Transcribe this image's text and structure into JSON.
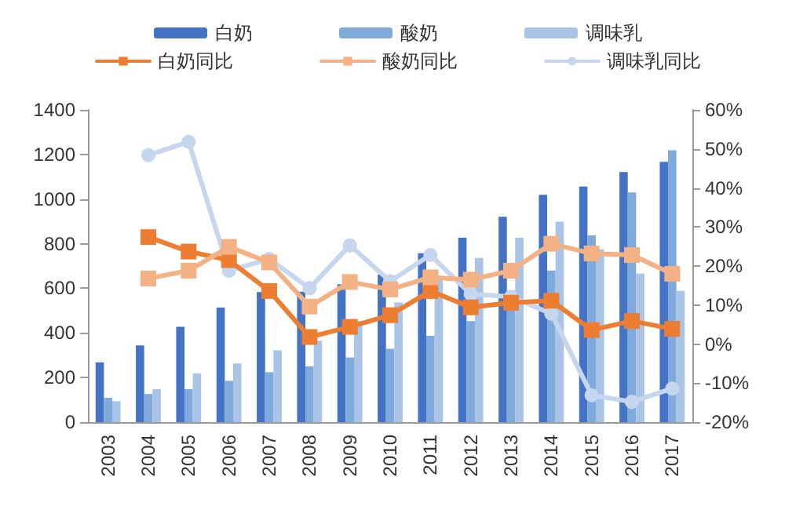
{
  "chart_data": {
    "type": "bar",
    "categories": [
      "2003",
      "2004",
      "2005",
      "2006",
      "2007",
      "2008",
      "2009",
      "2010",
      "2011",
      "2012",
      "2013",
      "2014",
      "2015",
      "2016",
      "2017"
    ],
    "series": [
      {
        "name": "白奶",
        "color": "#4472c4",
        "values": [
          268,
          344,
          427,
          514,
          583,
          585,
          618,
          661,
          757,
          827,
          921,
          1019,
          1056,
          1121,
          1167
        ]
      },
      {
        "name": "酸奶",
        "color": "#7faadc",
        "values": [
          109,
          126,
          148,
          185,
          224,
          250,
          290,
          329,
          387,
          453,
          590,
          680,
          837,
          1030,
          1219
        ]
      },
      {
        "name": "调味乳",
        "color": "#a9c4e6",
        "values": [
          94,
          148,
          218,
          263,
          322,
          365,
          453,
          536,
          650,
          736,
          827,
          899,
          775,
          666,
          588
        ]
      },
      {
        "name": "白奶同比",
        "type": "line",
        "axis": "y2",
        "marker": "square",
        "color": "#ed7d31",
        "values": [
          null,
          27.4,
          23.7,
          21.5,
          13.6,
          1.8,
          4.4,
          7.4,
          13.6,
          9.4,
          10.6,
          11.1,
          3.6,
          5.9,
          3.9
        ]
      },
      {
        "name": "酸奶同比",
        "type": "line",
        "axis": "y2",
        "marker": "square",
        "color": "#f4b183",
        "values": [
          null,
          16.8,
          18.8,
          24.9,
          20.9,
          9.6,
          15.9,
          14.0,
          17.1,
          16.5,
          18.8,
          25.7,
          23.2,
          22.8,
          18.0
        ]
      },
      {
        "name": "调味乳同比",
        "type": "line",
        "axis": "y2",
        "marker": "circle",
        "color": "#c5d6ee",
        "values": [
          null,
          48.4,
          51.8,
          18.8,
          21.8,
          14.3,
          25.3,
          16.1,
          22.8,
          12.8,
          12.1,
          7.8,
          -13.1,
          -14.8,
          -11.4
        ]
      }
    ],
    "ylim": [
      0,
      1400
    ],
    "yticks": [
      0,
      200,
      400,
      600,
      800,
      1000,
      1200,
      1400
    ],
    "y2lim": [
      -20,
      60
    ],
    "y2ticks": [
      {
        "value": -20,
        "label": "-20%"
      },
      {
        "value": -10,
        "label": "-10%"
      },
      {
        "value": 0,
        "label": "0%"
      },
      {
        "value": 10,
        "label": "10%"
      },
      {
        "value": 20,
        "label": "20%"
      },
      {
        "value": 30,
        "label": "30%"
      },
      {
        "value": 40,
        "label": "40%"
      },
      {
        "value": 50,
        "label": "50%"
      },
      {
        "value": 60,
        "label": "60%"
      }
    ],
    "grid": false,
    "legend": "top"
  }
}
